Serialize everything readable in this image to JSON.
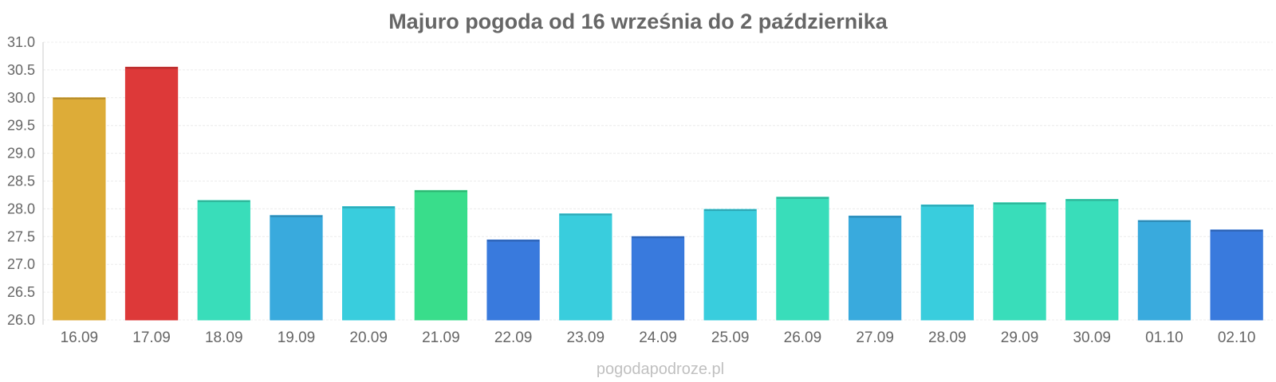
{
  "watermark": "pogodapodroze.pl",
  "chart_data": {
    "type": "bar",
    "title": "Majuro pogoda od 16 września do 2 października",
    "xlabel": "",
    "ylabel": "",
    "ylim": [
      26.0,
      31.0
    ],
    "yticks": [
      "26.0",
      "26.5",
      "27.0",
      "27.5",
      "28.0",
      "28.5",
      "29.0",
      "29.5",
      "30.0",
      "30.5",
      "31.0"
    ],
    "grid": true,
    "categories": [
      "16.09",
      "17.09",
      "18.09",
      "19.09",
      "20.09",
      "21.09",
      "22.09",
      "23.09",
      "24.09",
      "25.09",
      "26.09",
      "27.09",
      "28.09",
      "29.09",
      "30.09",
      "01.10",
      "02.10"
    ],
    "values": [
      30.0,
      30.55,
      28.15,
      27.88,
      28.04,
      28.33,
      27.44,
      27.91,
      27.5,
      27.99,
      28.21,
      27.87,
      28.07,
      28.11,
      28.17,
      27.79,
      27.62
    ],
    "colors": [
      "#dcaa34",
      "#dc3535",
      "#35dcb9",
      "#35a8dc",
      "#35ccdc",
      "#35dc89",
      "#3577dc",
      "#35ccdc",
      "#3577dc",
      "#35ccdc",
      "#35dcb9",
      "#35a8dc",
      "#35ccdc",
      "#35dcb9",
      "#35dcb9",
      "#35a8dc",
      "#3577dc"
    ]
  }
}
